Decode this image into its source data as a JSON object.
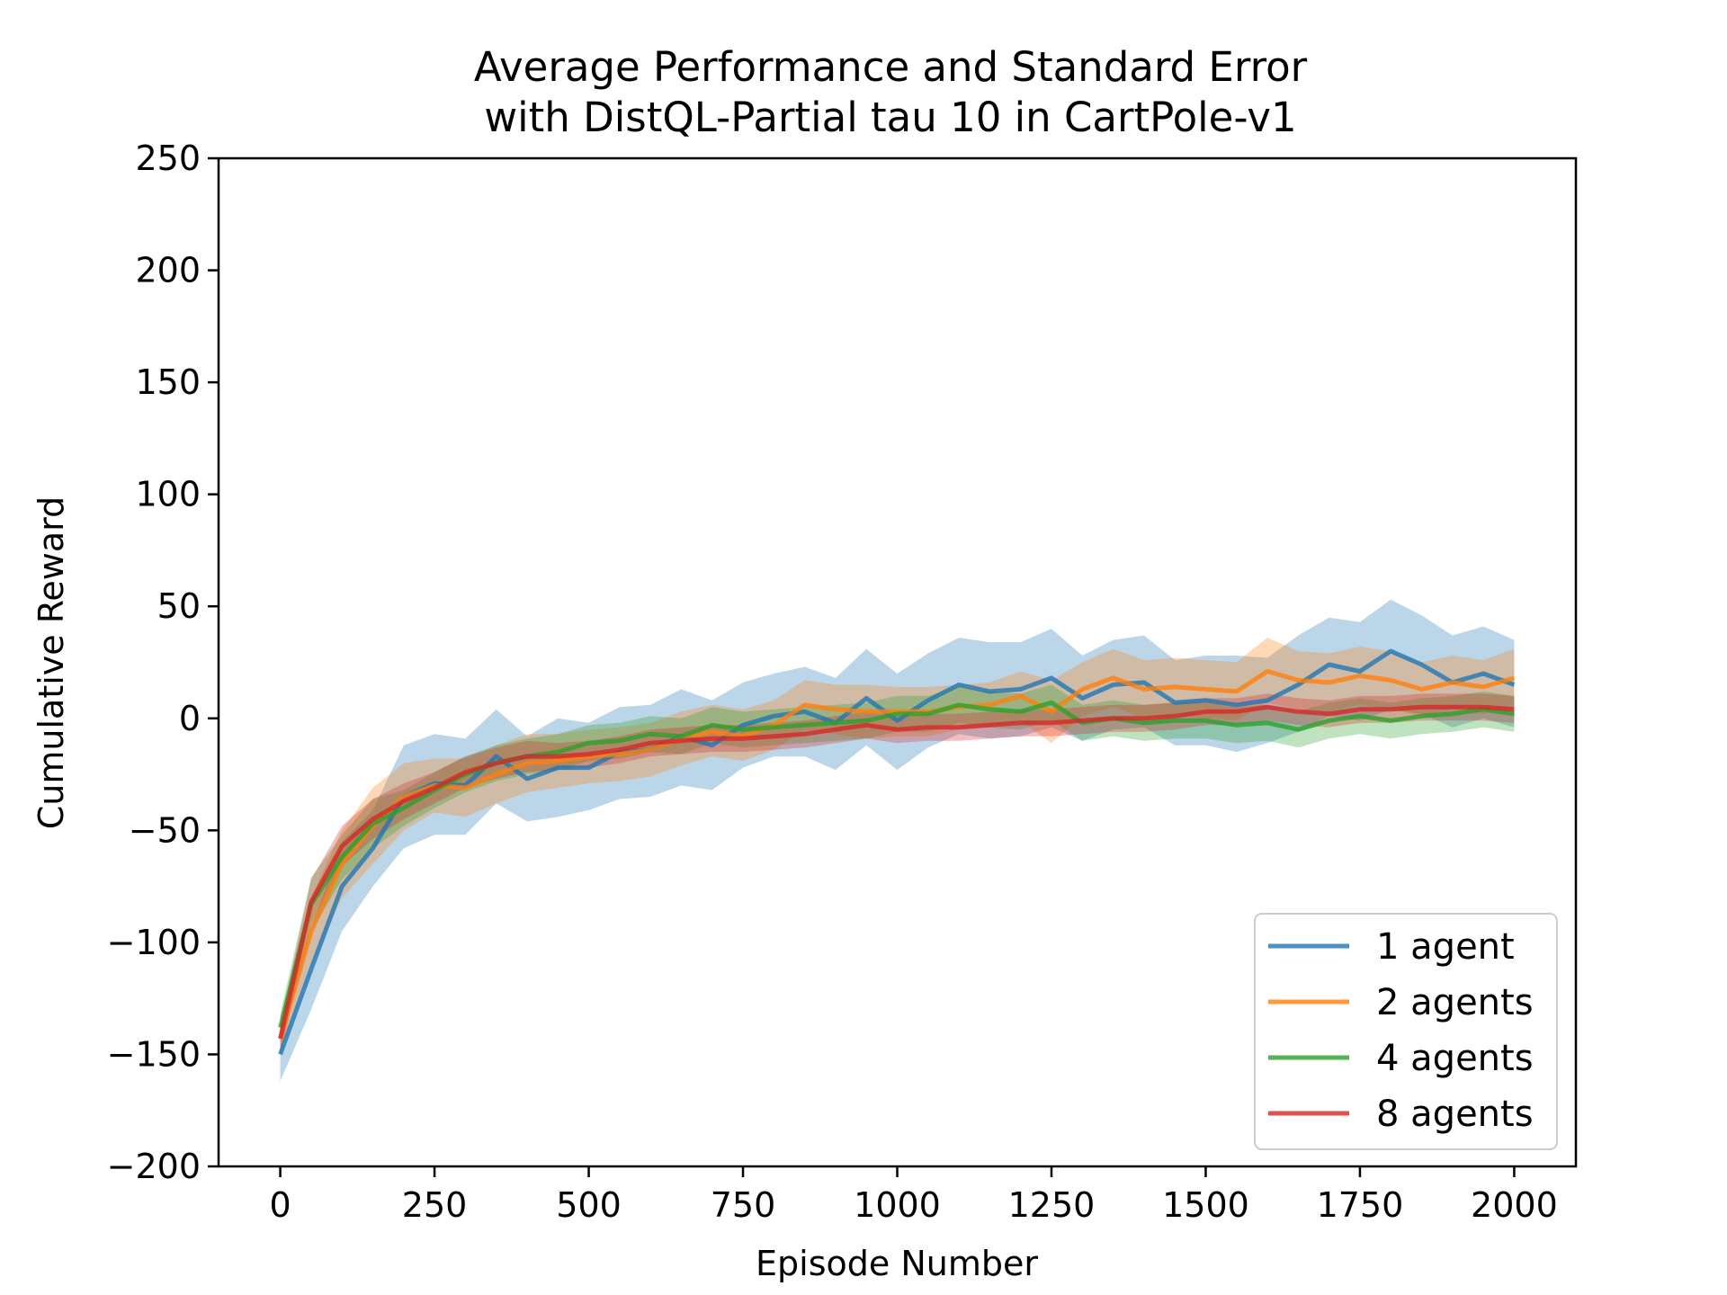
{
  "chart_data": {
    "type": "line",
    "title_line1": "Average Performance and Standard Error",
    "title_line2": "with DistQL-Partial tau 10 in CartPole-v1",
    "xlabel": "Episode Number",
    "ylabel": "Cumulative Reward",
    "xlim": [
      -100,
      2100
    ],
    "ylim": [
      -200,
      250
    ],
    "xticks": [
      0,
      250,
      500,
      750,
      1000,
      1250,
      1500,
      1750,
      2000
    ],
    "yticks": [
      -200,
      -150,
      -100,
      -50,
      0,
      50,
      100,
      150,
      200,
      250
    ],
    "xtick_labels": [
      "0",
      "250",
      "500",
      "750",
      "1000",
      "1250",
      "1500",
      "1750",
      "2000"
    ],
    "ytick_labels": [
      "−200",
      "−150",
      "−100",
      "−50",
      "0",
      "50",
      "100",
      "150",
      "200",
      "250"
    ],
    "legend_position": "lower-right",
    "grid": false,
    "x": [
      0,
      50,
      100,
      150,
      200,
      250,
      300,
      350,
      400,
      450,
      500,
      550,
      600,
      650,
      700,
      750,
      800,
      850,
      900,
      950,
      1000,
      1050,
      1100,
      1150,
      1200,
      1250,
      1300,
      1350,
      1400,
      1450,
      1500,
      1550,
      1600,
      1650,
      1700,
      1750,
      1800,
      1850,
      1900,
      1950,
      2000
    ],
    "series": [
      {
        "name": "1 agent",
        "color": "#1f77b4",
        "values": [
          -150,
          -112,
          -75,
          -58,
          -35,
          -29,
          -30,
          -17,
          -27,
          -22,
          -22,
          -15,
          -14,
          -8,
          -12,
          -3,
          1,
          3,
          -2,
          9,
          -1,
          8,
          15,
          12,
          13,
          18,
          9,
          15,
          16,
          7,
          8,
          6,
          8,
          15,
          24,
          21,
          30,
          24,
          16,
          20,
          15
        ],
        "lower": [
          -162,
          -130,
          -95,
          -75,
          -58,
          -52,
          -52,
          -38,
          -46,
          -44,
          -41,
          -36,
          -35,
          -30,
          -32,
          -22,
          -17,
          -17,
          -23,
          -12,
          -23,
          -13,
          -7,
          -9,
          -8,
          -4,
          -10,
          -5,
          -4,
          -12,
          -12,
          -15,
          -11,
          -6,
          1,
          -1,
          4,
          2,
          -4,
          0,
          -4
        ],
        "upper": [
          -138,
          -94,
          -55,
          -41,
          -12,
          -7,
          -9,
          4,
          -8,
          0,
          -2,
          5,
          6,
          13,
          8,
          16,
          20,
          23,
          18,
          31,
          20,
          29,
          36,
          34,
          34,
          40,
          28,
          35,
          37,
          26,
          28,
          28,
          27,
          37,
          45,
          43,
          53,
          46,
          37,
          41,
          35
        ]
      },
      {
        "name": "2 agents",
        "color": "#ff7f0e",
        "values": [
          -143,
          -95,
          -65,
          -48,
          -35,
          -30,
          -31,
          -25,
          -20,
          -19,
          -17,
          -16,
          -14,
          -9,
          -6,
          -8,
          -3,
          6,
          4,
          3,
          3,
          3,
          5,
          6,
          10,
          3,
          13,
          18,
          13,
          14,
          13,
          12,
          21,
          17,
          16,
          19,
          17,
          13,
          16,
          14,
          18
        ],
        "lower": [
          -150,
          -110,
          -80,
          -65,
          -50,
          -42,
          -44,
          -38,
          -33,
          -31,
          -29,
          -28,
          -26,
          -21,
          -17,
          -19,
          -14,
          -5,
          -7,
          -9,
          -8,
          -8,
          -5,
          -4,
          -1,
          -11,
          1,
          5,
          0,
          1,
          0,
          -1,
          7,
          4,
          3,
          6,
          4,
          1,
          4,
          2,
          5
        ],
        "upper": [
          -136,
          -80,
          -50,
          -31,
          -20,
          -18,
          -18,
          -12,
          -7,
          -7,
          -5,
          -4,
          -2,
          3,
          6,
          4,
          8,
          17,
          15,
          15,
          14,
          14,
          15,
          16,
          21,
          17,
          25,
          31,
          26,
          27,
          26,
          25,
          36,
          30,
          29,
          32,
          30,
          25,
          28,
          26,
          31
        ]
      },
      {
        "name": "4 agents",
        "color": "#2ca02c",
        "values": [
          -138,
          -83,
          -62,
          -47,
          -40,
          -32,
          -25,
          -20,
          -17,
          -15,
          -11,
          -10,
          -7,
          -8,
          -3,
          -5,
          -4,
          -3,
          -2,
          -1,
          2,
          2,
          6,
          4,
          3,
          7,
          -2,
          0,
          -2,
          -1,
          -1,
          -3,
          -2,
          -5,
          -1,
          1,
          -1,
          1,
          2,
          4,
          2
        ],
        "lower": [
          -144,
          -95,
          -72,
          -58,
          -48,
          -40,
          -33,
          -28,
          -25,
          -23,
          -19,
          -18,
          -15,
          -16,
          -11,
          -13,
          -12,
          -11,
          -10,
          -9,
          -6,
          -6,
          -2,
          -4,
          -5,
          -1,
          -10,
          -8,
          -10,
          -9,
          -9,
          -11,
          -10,
          -13,
          -9,
          -7,
          -9,
          -7,
          -6,
          -4,
          -6
        ],
        "upper": [
          -132,
          -71,
          -52,
          -36,
          -32,
          -24,
          -17,
          -12,
          -9,
          -7,
          -3,
          -2,
          1,
          0,
          5,
          3,
          4,
          5,
          6,
          7,
          10,
          10,
          14,
          12,
          11,
          15,
          6,
          8,
          6,
          7,
          7,
          5,
          6,
          3,
          7,
          9,
          7,
          9,
          10,
          12,
          10
        ]
      },
      {
        "name": "8 agents",
        "color": "#d62728",
        "values": [
          -143,
          -82,
          -57,
          -45,
          -37,
          -31,
          -24,
          -20,
          -17,
          -17,
          -16,
          -14,
          -11,
          -10,
          -9,
          -9,
          -8,
          -7,
          -5,
          -3,
          -5,
          -4,
          -4,
          -3,
          -2,
          -2,
          -1,
          0,
          0,
          1,
          3,
          3,
          5,
          3,
          2,
          4,
          4,
          5,
          5,
          5,
          4
        ],
        "lower": [
          -150,
          -92,
          -66,
          -54,
          -45,
          -38,
          -31,
          -27,
          -24,
          -23,
          -22,
          -20,
          -17,
          -16,
          -15,
          -15,
          -14,
          -13,
          -11,
          -9,
          -11,
          -10,
          -10,
          -9,
          -8,
          -8,
          -7,
          -6,
          -6,
          -5,
          -3,
          -3,
          -1,
          -3,
          -4,
          -2,
          -2,
          -1,
          -1,
          -1,
          -2
        ],
        "upper": [
          -136,
          -72,
          -48,
          -36,
          -29,
          -24,
          -17,
          -13,
          -10,
          -11,
          -10,
          -8,
          -5,
          -4,
          -3,
          -3,
          -2,
          -1,
          1,
          3,
          1,
          2,
          2,
          3,
          4,
          4,
          5,
          6,
          6,
          7,
          9,
          9,
          11,
          9,
          8,
          10,
          10,
          11,
          11,
          11,
          10
        ]
      }
    ]
  }
}
